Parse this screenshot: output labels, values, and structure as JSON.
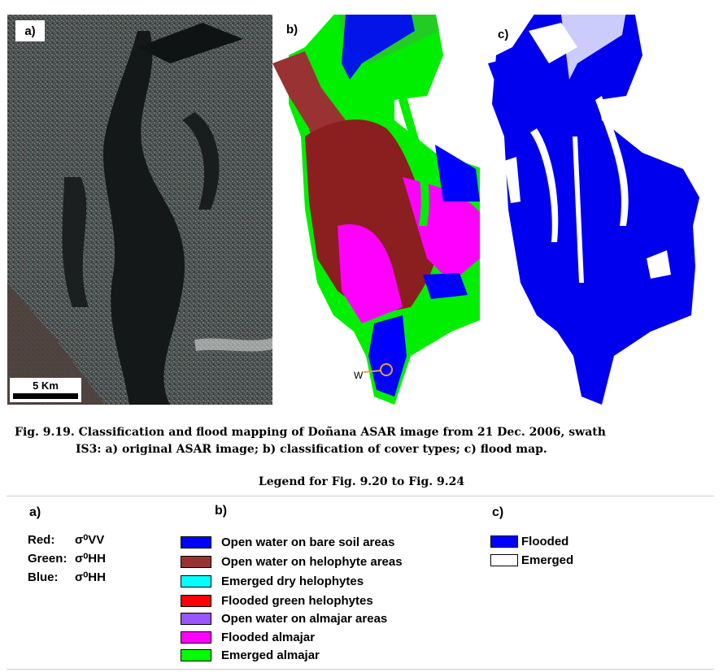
{
  "panels": {
    "a_label": "a)",
    "b_label": "b)",
    "c_label": "c)",
    "scalebar": "5 Km",
    "marker": "W"
  },
  "caption": {
    "line1": "Fig. 9.19.  Classification and flood mapping of Doñana ASAR image from 21 Dec. 2006, swath",
    "line2": "IS3: a) original ASAR image; b) classification of cover types; c) flood map."
  },
  "legend": {
    "title": "Legend for Fig. 9.20 to Fig. 9.24",
    "a": {
      "heading": "a)",
      "rows": [
        {
          "key": "Red:",
          "value": "σ⁰VV"
        },
        {
          "key": "Green:",
          "value": "σ⁰HH"
        },
        {
          "key": "Blue:",
          "value": "σ⁰HH"
        }
      ]
    },
    "b": {
      "heading": "b)",
      "items": [
        {
          "label": "Open water on bare soil areas",
          "color": "#0000ff"
        },
        {
          "label": "Open water on helophyte areas",
          "color": "#993333"
        },
        {
          "label": "Emerged dry helophytes",
          "color": "#00ffff"
        },
        {
          "label": "Flooded green helophytes",
          "color": "#ff0000"
        },
        {
          "label": "Open water on almajar areas",
          "color": "#9955ff"
        },
        {
          "label": "Flooded almajar",
          "color": "#ff00ff"
        },
        {
          "label": "Emerged almajar",
          "color": "#00ff00"
        }
      ]
    },
    "c": {
      "heading": "c)",
      "items": [
        {
          "label": "Flooded",
          "color": "#0000ff"
        },
        {
          "label": "Emerged",
          "color": "#ffffff"
        }
      ]
    }
  }
}
